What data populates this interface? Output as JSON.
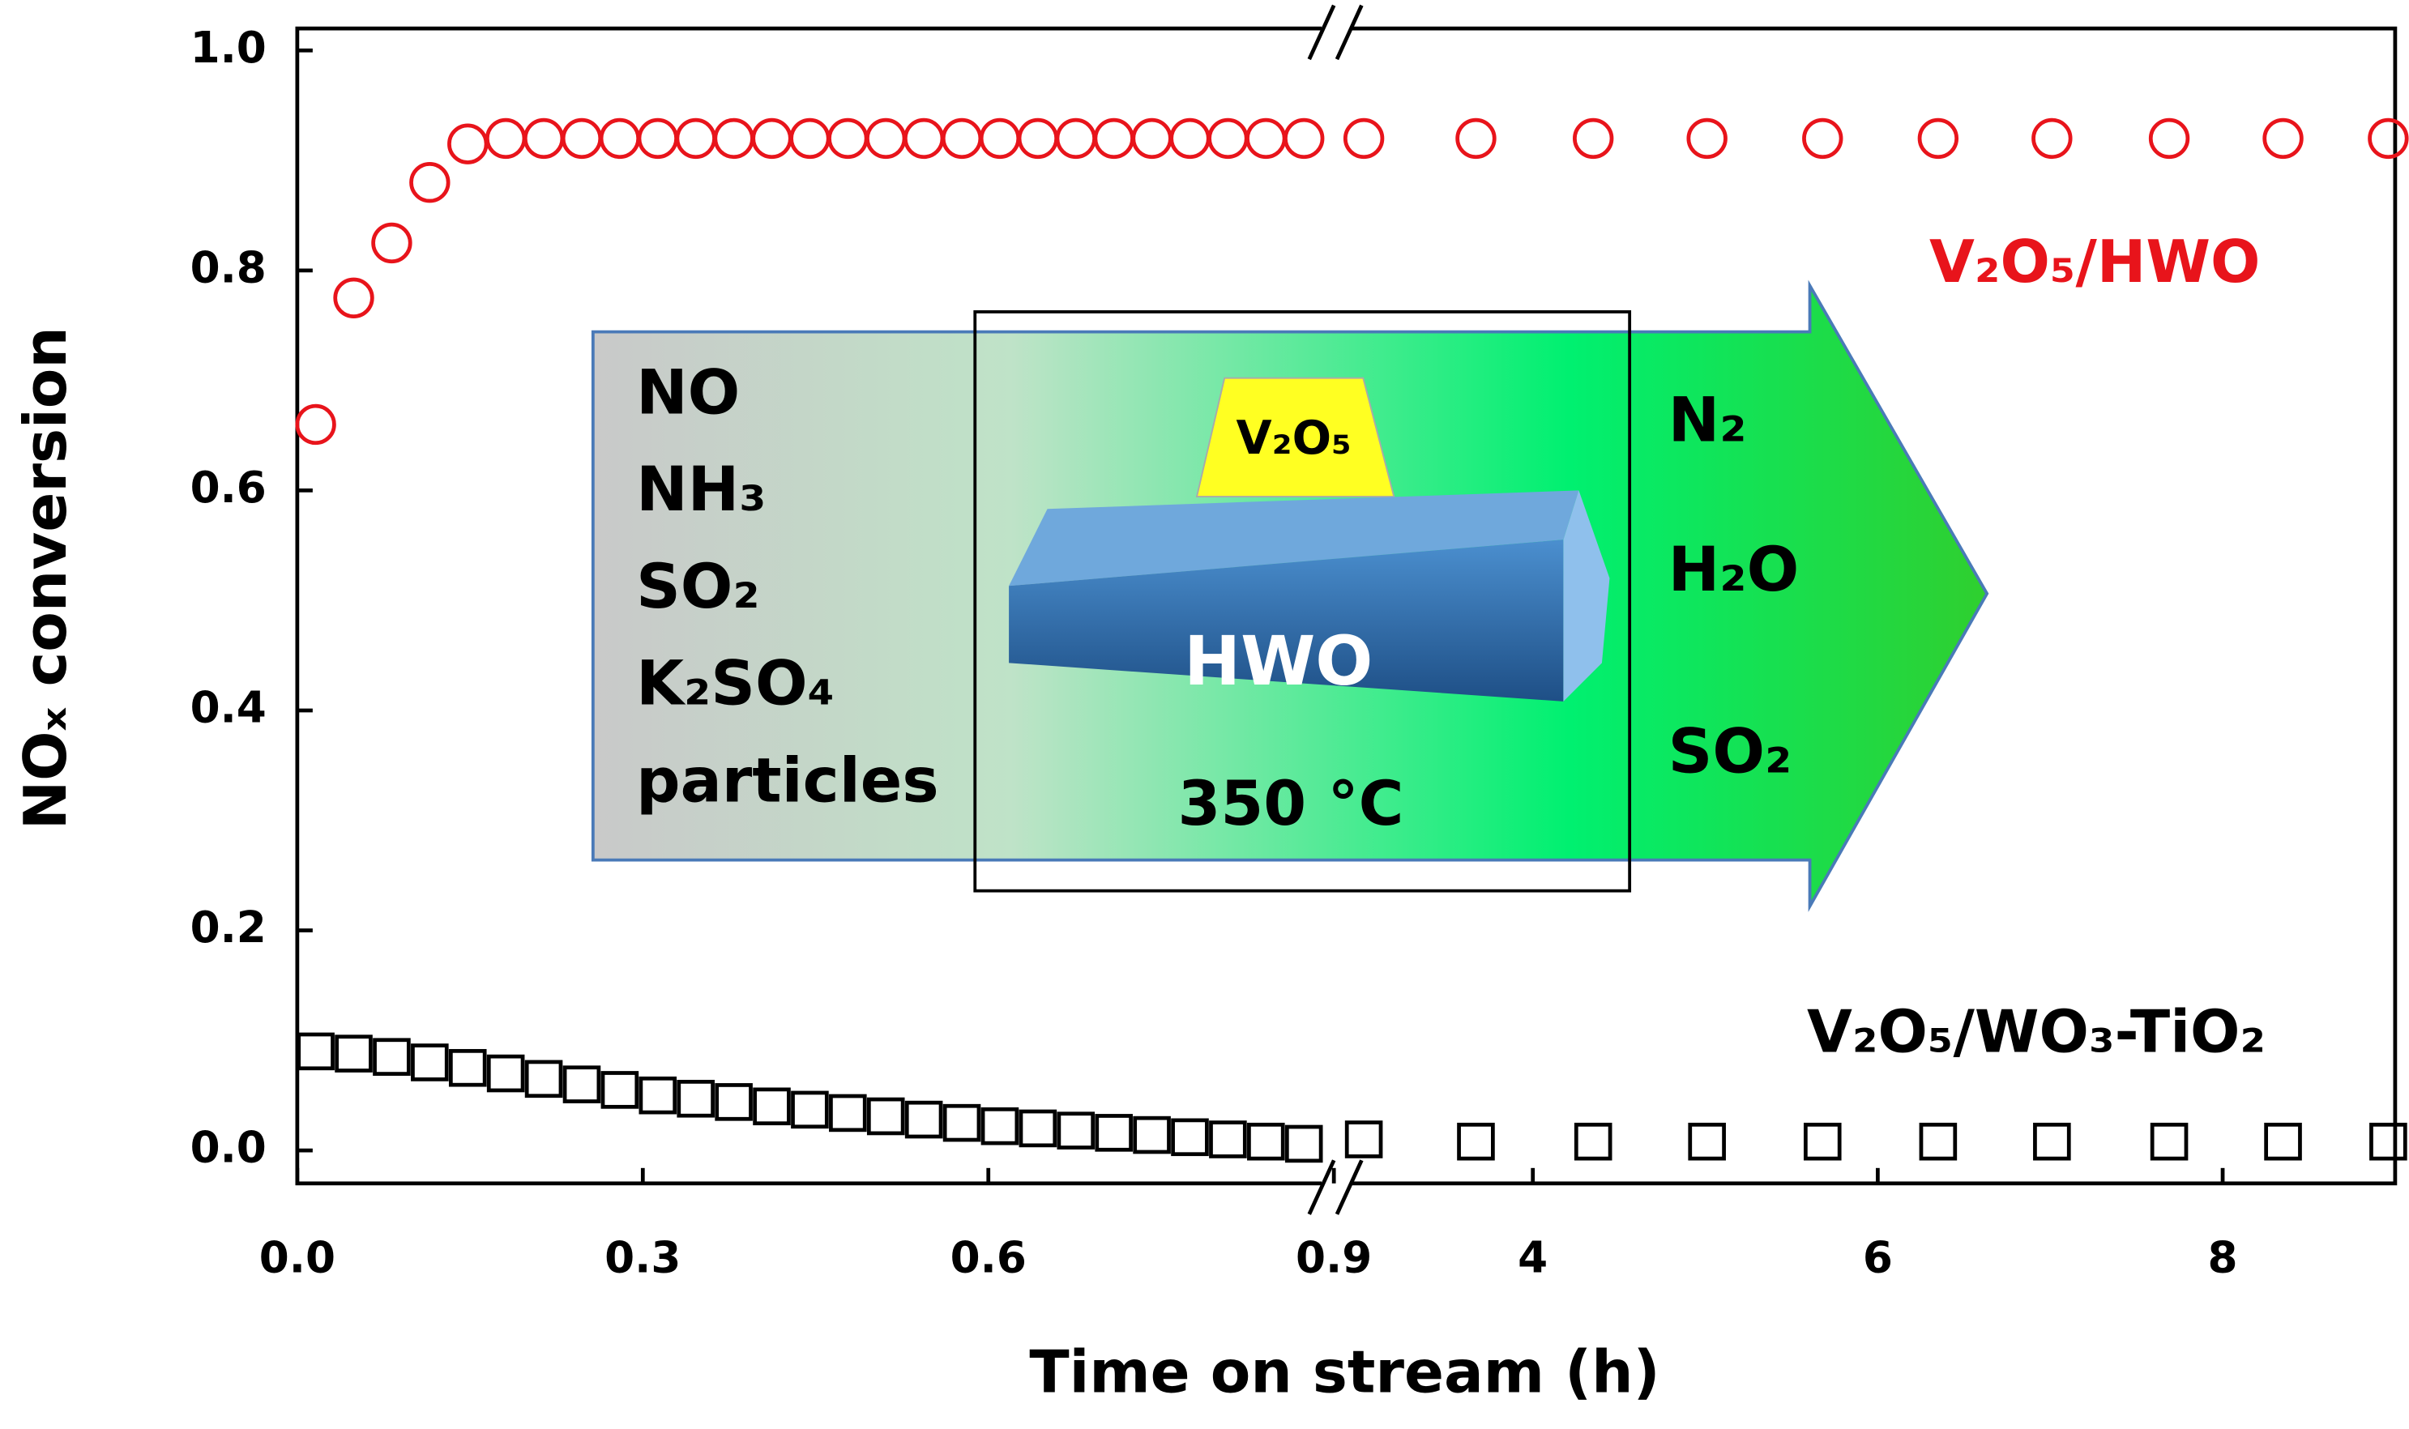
{
  "chart_data": {
    "type": "scatter",
    "xlabel": "Time on stream (h)",
    "ylabel": "NOₓ conversion",
    "xlim": [
      0,
      9
    ],
    "axis_break": [
      0.9,
      2.9
    ],
    "xticks": [
      {
        "value": 0,
        "label": "0.0"
      },
      0.3,
      0.6,
      0.9,
      4,
      6,
      8
    ],
    "ylim": [
      -0.03,
      1.02
    ],
    "yticks": [
      {
        "value": 0,
        "label": "0.0"
      },
      0.2,
      0.4,
      0.6,
      0.8,
      {
        "value": 1,
        "label": "1.0"
      }
    ],
    "series": [
      {
        "name": "V₂O₅/HWO",
        "color": "#e8141b",
        "marker": "circle",
        "x": [
          0.016,
          0.049,
          0.082,
          0.115,
          0.148,
          0.181,
          0.214,
          0.247,
          0.28,
          0.313,
          0.346,
          0.379,
          0.412,
          0.445,
          0.478,
          0.511,
          0.544,
          0.577,
          0.61,
          0.643,
          0.676,
          0.709,
          0.742,
          0.775,
          0.808,
          0.841,
          0.874,
          3.02,
          3.67,
          4.35,
          5.01,
          5.68,
          6.35,
          7.01,
          7.69,
          8.35,
          8.96
        ],
        "values": [
          0.66,
          0.775,
          0.825,
          0.88,
          0.915,
          0.92,
          0.92,
          0.92,
          0.92,
          0.92,
          0.92,
          0.92,
          0.92,
          0.92,
          0.92,
          0.92,
          0.92,
          0.92,
          0.92,
          0.92,
          0.92,
          0.92,
          0.92,
          0.92,
          0.92,
          0.92,
          0.92,
          0.92,
          0.92,
          0.92,
          0.92,
          0.92,
          0.92,
          0.92,
          0.92,
          0.92,
          0.92
        ]
      },
      {
        "name": "V₂O₅/WO₃-TiO₂",
        "color": "#000000",
        "marker": "square",
        "x": [
          0.016,
          0.049,
          0.082,
          0.115,
          0.148,
          0.181,
          0.214,
          0.247,
          0.28,
          0.313,
          0.346,
          0.379,
          0.412,
          0.445,
          0.478,
          0.511,
          0.544,
          0.577,
          0.61,
          0.643,
          0.676,
          0.709,
          0.742,
          0.775,
          0.808,
          0.841,
          0.874,
          3.02,
          3.67,
          4.35,
          5.01,
          5.68,
          6.35,
          7.01,
          7.69,
          8.35,
          8.96
        ],
        "values": [
          0.09,
          0.088,
          0.085,
          0.08,
          0.075,
          0.07,
          0.065,
          0.06,
          0.055,
          0.05,
          0.047,
          0.044,
          0.04,
          0.037,
          0.034,
          0.031,
          0.028,
          0.025,
          0.022,
          0.02,
          0.018,
          0.016,
          0.014,
          0.012,
          0.01,
          0.008,
          0.006,
          0.01,
          0.008,
          0.008,
          0.008,
          0.008,
          0.008,
          0.008,
          0.008,
          0.008,
          0.008
        ]
      }
    ],
    "inset": {
      "feed": [
        "NO",
        "NH₃",
        "SO₂",
        "K₂SO₄",
        "particles"
      ],
      "catalyst": "V₂O₅",
      "support": "HWO",
      "temperature": "350 °C",
      "products": [
        "N₂",
        "H₂O",
        "SO₂"
      ]
    }
  }
}
